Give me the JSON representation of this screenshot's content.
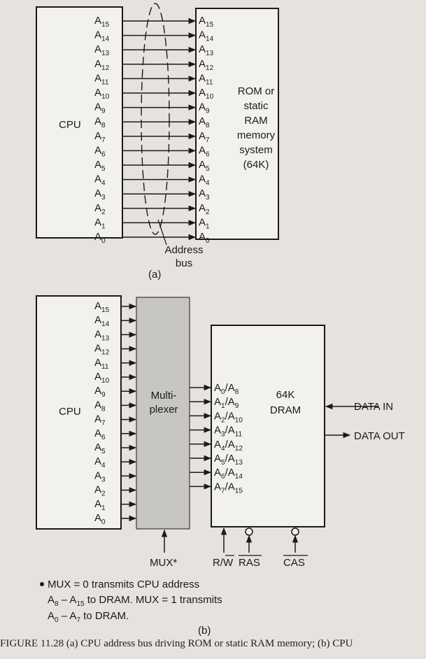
{
  "diagram_a": {
    "cpu_label": "CPU",
    "address_lines": [
      "15",
      "14",
      "13",
      "12",
      "11",
      "10",
      "9",
      "8",
      "7",
      "6",
      "5",
      "4",
      "3",
      "2",
      "1",
      "0"
    ],
    "memory_label_lines": [
      "ROM or",
      "static",
      "RAM",
      "memory",
      "system",
      "(64K)"
    ],
    "bus_label_lines": [
      "Address",
      "bus"
    ],
    "part_label": "(a)"
  },
  "diagram_b": {
    "cpu_label": "CPU",
    "address_lines": [
      "15",
      "14",
      "13",
      "12",
      "11",
      "10",
      "9",
      "8",
      "7",
      "6",
      "5",
      "4",
      "3",
      "2",
      "1",
      "0"
    ],
    "mux_label_lines": [
      "Multi-",
      "plexer"
    ],
    "dram_label_lines": [
      "64K",
      "DRAM"
    ],
    "dram_inputs": [
      {
        "a": "0",
        "b": "8"
      },
      {
        "a": "1",
        "b": "9"
      },
      {
        "a": "2",
        "b": "10"
      },
      {
        "a": "3",
        "b": "11"
      },
      {
        "a": "4",
        "b": "12"
      },
      {
        "a": "5",
        "b": "13"
      },
      {
        "a": "6",
        "b": "14"
      },
      {
        "a": "7",
        "b": "15"
      }
    ],
    "data_in": "DATA IN",
    "data_out": "DATA OUT",
    "mux_signal": "MUX*",
    "rw_signal": "R/W",
    "ras_signal": "RAS",
    "cas_signal": "CAS",
    "note_lines": [
      "MUX = 0 transmits CPU address",
      "to DRAM. MUX = 1 transmits",
      "to DRAM."
    ],
    "note_ranges": [
      "A8 – A15",
      "A0 – A7"
    ],
    "part_label": "(b)"
  },
  "caption": "FIGURE 11.28   (a) CPU address bus driving ROM or static RAM memory; (b) CPU"
}
